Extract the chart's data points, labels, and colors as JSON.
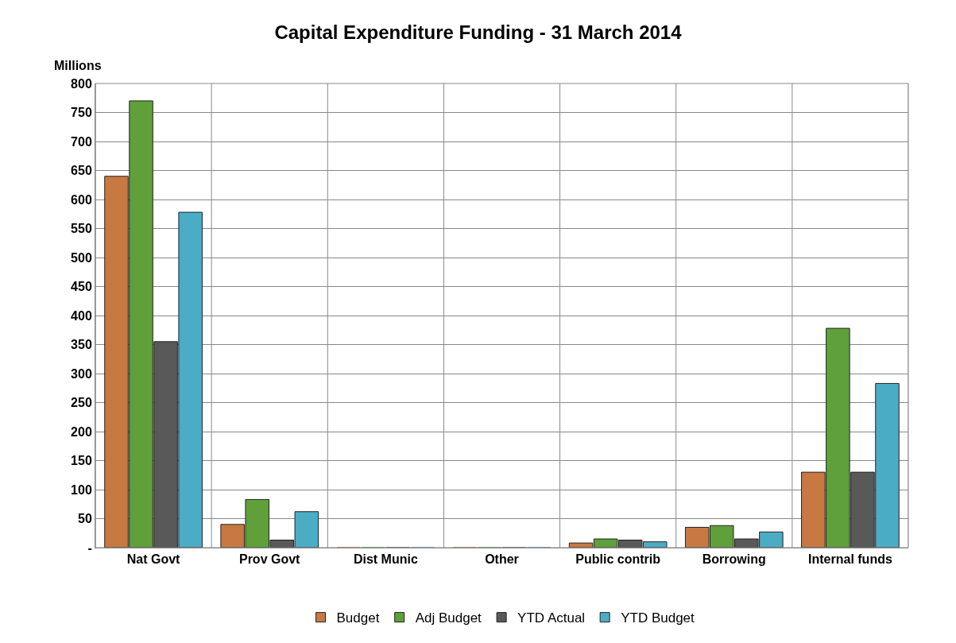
{
  "chart_data": {
    "type": "bar",
    "title": "Capital Expenditure Funding - 31 March 2014",
    "ylabel": "Millions",
    "categories": [
      "Nat Govt",
      "Prov Govt",
      "Dist Munic",
      "Other",
      "Public contrib",
      "Borrowing",
      "Internal funds"
    ],
    "series": [
      {
        "name": "Budget",
        "color": "#c87941",
        "values": [
          640,
          40,
          0,
          0,
          8,
          35,
          130
        ]
      },
      {
        "name": "Adj Budget",
        "color": "#5fa03a",
        "values": [
          770,
          83,
          0,
          0,
          15,
          38,
          378
        ]
      },
      {
        "name": "YTD Actual",
        "color": "#595959",
        "values": [
          355,
          13,
          0,
          0,
          13,
          15,
          130
        ]
      },
      {
        "name": "YTD Budget",
        "color": "#4bacc6",
        "values": [
          578,
          62,
          0,
          0,
          10,
          27,
          283
        ]
      }
    ],
    "ylim": [
      0,
      800
    ],
    "yticks": [
      {
        "value": 0,
        "label": "-"
      },
      50,
      100,
      150,
      200,
      250,
      300,
      350,
      400,
      450,
      500,
      550,
      600,
      650,
      700,
      750,
      800
    ],
    "grid": true,
    "legend": "bottom"
  }
}
